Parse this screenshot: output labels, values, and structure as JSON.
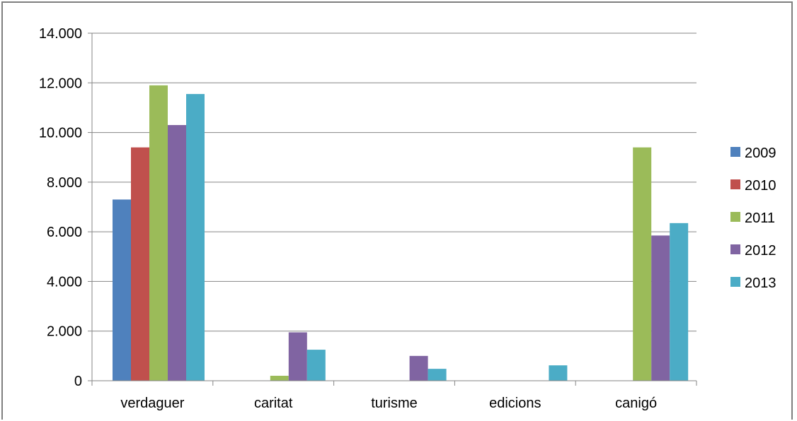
{
  "chart_data": {
    "type": "bar",
    "title": "",
    "xlabel": "",
    "ylabel": "",
    "categories": [
      "verdaguer",
      "caritat",
      "turisme",
      "edicions",
      "canigó"
    ],
    "ylim": [
      0,
      14000
    ],
    "yticks": [
      0,
      2000,
      4000,
      6000,
      8000,
      10000,
      12000,
      14000
    ],
    "ytick_labels": [
      "0",
      "2.000",
      "4.000",
      "6.000",
      "8.000",
      "10.000",
      "12.000",
      "14.000"
    ],
    "grid": true,
    "legend_position": "right",
    "series": [
      {
        "name": "2009",
        "color": "#4f81bd",
        "values": [
          7300,
          0,
          0,
          0,
          0
        ]
      },
      {
        "name": "2010",
        "color": "#c0504d",
        "values": [
          9400,
          0,
          0,
          0,
          0
        ]
      },
      {
        "name": "2011",
        "color": "#9bbb59",
        "values": [
          11900,
          200,
          0,
          0,
          9400
        ]
      },
      {
        "name": "2012",
        "color": "#8064a2",
        "values": [
          10300,
          1950,
          1000,
          0,
          5850
        ]
      },
      {
        "name": "2013",
        "color": "#4bacc6",
        "values": [
          11550,
          1250,
          480,
          620,
          6350
        ]
      }
    ]
  }
}
